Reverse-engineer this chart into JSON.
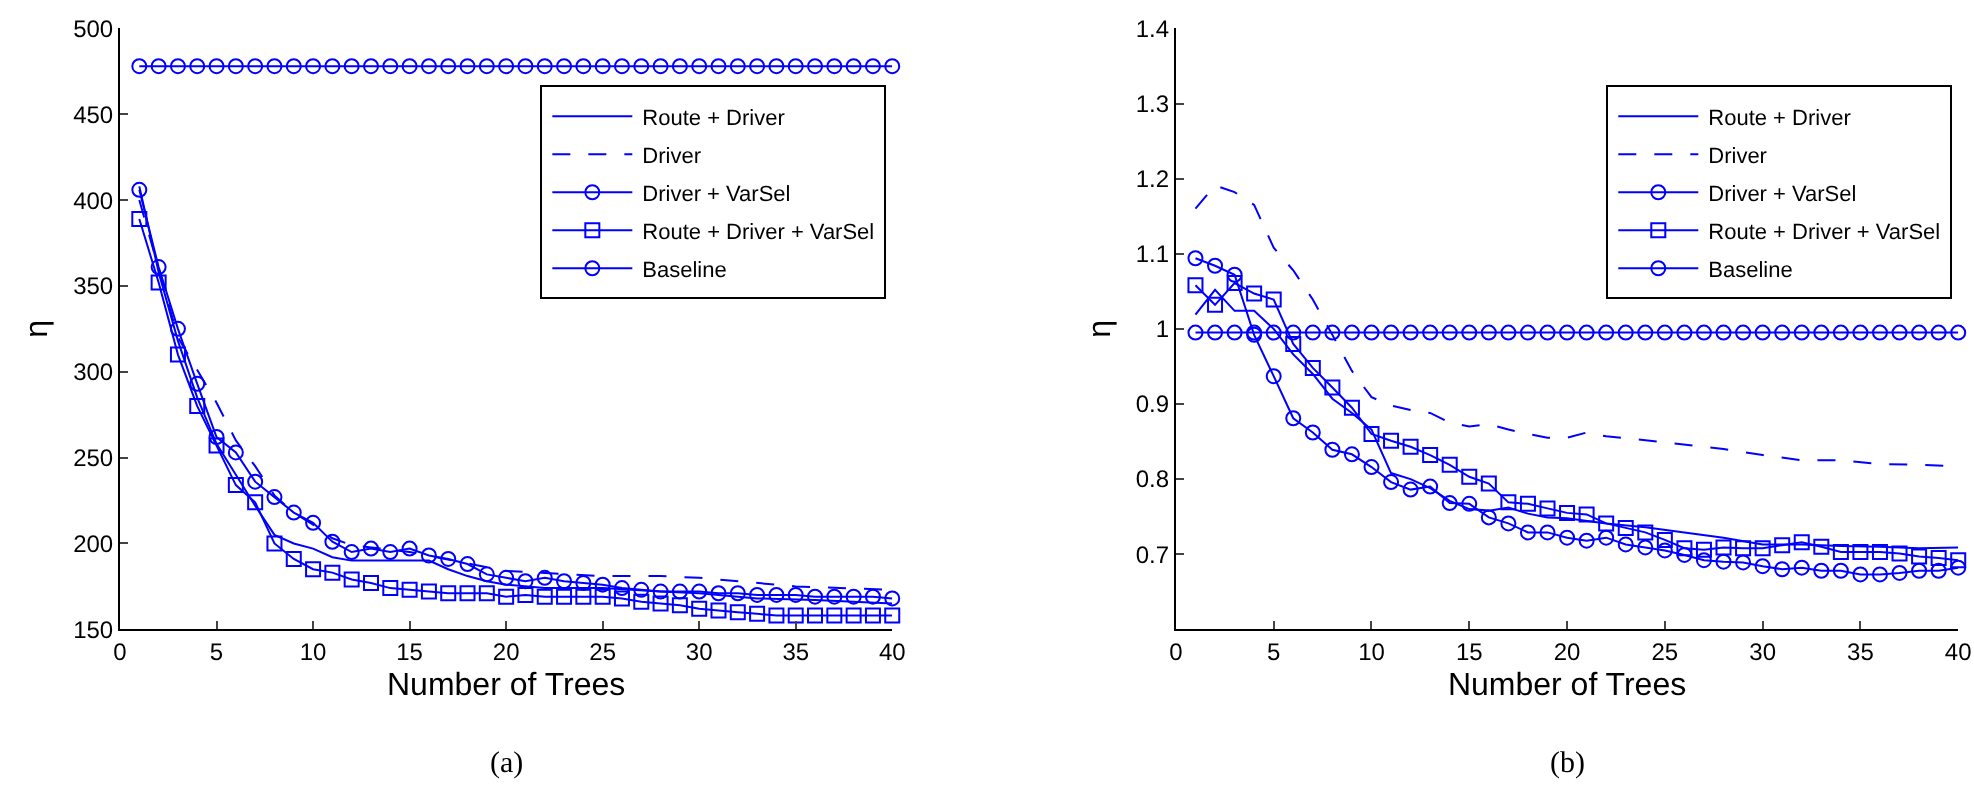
{
  "chart_data": [
    {
      "type": "line",
      "xlabel": "Number of Trees",
      "ylabel": "η",
      "annotations": [
        "(a)"
      ],
      "legend": "top right",
      "grid": false,
      "marker": "none",
      "line_style": "solid",
      "xlim": [
        0,
        40
      ],
      "xticks": [
        0,
        5,
        10,
        15,
        20,
        25,
        30,
        35,
        40
      ],
      "ylim": [
        150,
        500
      ],
      "yticks": [
        150,
        200,
        250,
        300,
        350,
        400,
        450,
        500
      ],
      "x": [
        1,
        2,
        3,
        4,
        5,
        6,
        7,
        8,
        9,
        10,
        11,
        12,
        13,
        14,
        15,
        16,
        17,
        18,
        19,
        20,
        21,
        22,
        23,
        24,
        25,
        26,
        27,
        28,
        29,
        30,
        31,
        32,
        33,
        34,
        35,
        36,
        37,
        38,
        39,
        40
      ],
      "series": [
        {
          "name": "Route + Driver",
          "color": "#0000ff",
          "x": [
            1,
            2,
            3,
            4,
            5,
            6,
            7,
            8,
            9,
            10,
            11,
            12,
            14,
            16,
            17,
            18,
            19,
            20,
            22,
            25,
            28,
            30,
            33,
            36,
            40
          ],
          "values": [
            408,
            358,
            318,
            285,
            258,
            240,
            222,
            205,
            200,
            197,
            192,
            190,
            190,
            190,
            185,
            181,
            178,
            176,
            174,
            174,
            172,
            171,
            168,
            167,
            165
          ]
        },
        {
          "name": "Driver",
          "color": "#0000ff",
          "line_style": "dashed",
          "x": [
            1,
            2,
            3,
            4,
            5,
            6,
            7,
            8,
            9,
            10,
            11,
            12,
            15,
            20,
            25,
            28,
            30,
            35,
            40
          ],
          "values": [
            400,
            360,
            320,
            301,
            282,
            260,
            245,
            228,
            218,
            211,
            203,
            199,
            195,
            184,
            181,
            181,
            180,
            175,
            173
          ]
        },
        {
          "name": "Driver + VarSel",
          "color": "#0000ff",
          "marker": "circle",
          "values": [
            406,
            361,
            325,
            293,
            262,
            253,
            236,
            227,
            218,
            212,
            201,
            195,
            197,
            195,
            197,
            193,
            191,
            188,
            182,
            180,
            178,
            180,
            178,
            177,
            176,
            174,
            173,
            172,
            172,
            172,
            171,
            171,
            170,
            170,
            170,
            169,
            169,
            169,
            169,
            168
          ]
        },
        {
          "name": "Route + Driver + VarSel",
          "color": "#0000ff",
          "marker": "square",
          "values": [
            389,
            352,
            310,
            280,
            257,
            234,
            224,
            200,
            191,
            185,
            183,
            179,
            177,
            174,
            173,
            172,
            171,
            171,
            171,
            169,
            170,
            169,
            169,
            169,
            169,
            168,
            166,
            165,
            164,
            162,
            161,
            160,
            159,
            158,
            158,
            158,
            158,
            158,
            158,
            158
          ]
        },
        {
          "name": "Baseline",
          "color": "#0000ff",
          "marker": "circle",
          "values": [
            478,
            478,
            478,
            478,
            478,
            478,
            478,
            478,
            478,
            478,
            478,
            478,
            478,
            478,
            478,
            478,
            478,
            478,
            478,
            478,
            478,
            478,
            478,
            478,
            478,
            478,
            478,
            478,
            478,
            478,
            478,
            478,
            478,
            478,
            478,
            478,
            478,
            478,
            478,
            478
          ]
        }
      ]
    },
    {
      "type": "line",
      "xlabel": "Number of Trees",
      "ylabel": "η",
      "annotations": [
        "(b)"
      ],
      "legend": "top right",
      "grid": false,
      "marker": "none",
      "line_style": "solid",
      "xlim": [
        0,
        40
      ],
      "xticks": [
        0,
        5,
        10,
        15,
        20,
        25,
        30,
        35,
        40
      ],
      "ylim": [
        0.6,
        1.4
      ],
      "yticks": [
        0.7,
        0.8,
        0.9,
        1,
        1.1,
        1.2,
        1.3,
        1.4
      ],
      "x": [
        1,
        2,
        3,
        4,
        5,
        6,
        7,
        8,
        9,
        10,
        11,
        12,
        13,
        14,
        15,
        16,
        17,
        18,
        19,
        20,
        21,
        22,
        23,
        24,
        25,
        26,
        27,
        28,
        29,
        30,
        31,
        32,
        33,
        34,
        35,
        36,
        37,
        38,
        39,
        40
      ],
      "series": [
        {
          "name": "Route + Driver",
          "color": "#0000ff",
          "x": [
            1,
            2,
            3,
            4,
            5,
            6,
            7,
            8,
            9,
            10,
            11,
            12,
            13,
            14,
            15,
            16,
            17,
            18,
            19,
            20,
            22,
            24,
            26,
            28,
            30,
            32,
            34,
            36,
            38,
            40
          ],
          "values": [
            1.019,
            1.052,
            1.024,
            1.024,
            1.0,
            0.966,
            0.94,
            0.907,
            0.888,
            0.866,
            0.808,
            0.8,
            0.788,
            0.771,
            0.76,
            0.758,
            0.762,
            0.754,
            0.749,
            0.748,
            0.741,
            0.736,
            0.729,
            0.722,
            0.713,
            0.713,
            0.711,
            0.71,
            0.708,
            0.709
          ]
        },
        {
          "name": "Driver",
          "color": "#0000ff",
          "line_style": "dashed",
          "x": [
            1,
            2,
            3,
            4,
            5,
            6,
            7,
            8,
            9,
            10,
            11,
            12,
            13,
            14,
            15,
            16,
            17,
            18,
            19,
            20,
            21,
            22,
            25,
            28,
            30,
            32,
            34,
            36,
            38,
            40
          ],
          "values": [
            1.16,
            1.191,
            1.182,
            1.165,
            1.108,
            1.078,
            1.039,
            0.992,
            0.944,
            0.909,
            0.898,
            0.892,
            0.888,
            0.875,
            0.87,
            0.873,
            0.866,
            0.86,
            0.855,
            0.855,
            0.862,
            0.857,
            0.849,
            0.84,
            0.832,
            0.825,
            0.825,
            0.82,
            0.819,
            0.817
          ]
        },
        {
          "name": "Driver + VarSel",
          "color": "#0000ff",
          "marker": "circle",
          "values": [
            1.094,
            1.084,
            1.072,
            0.992,
            0.937,
            0.881,
            0.862,
            0.839,
            0.833,
            0.816,
            0.796,
            0.786,
            0.79,
            0.768,
            0.767,
            0.749,
            0.741,
            0.729,
            0.729,
            0.722,
            0.718,
            0.722,
            0.713,
            0.709,
            0.705,
            0.699,
            0.692,
            0.69,
            0.689,
            0.684,
            0.68,
            0.682,
            0.678,
            0.678,
            0.673,
            0.673,
            0.675,
            0.678,
            0.678,
            0.682
          ]
        },
        {
          "name": "Route + Driver + VarSel",
          "color": "#0000ff",
          "marker": "square",
          "values": [
            1.058,
            1.032,
            1.061,
            1.047,
            1.039,
            0.98,
            0.948,
            0.922,
            0.895,
            0.86,
            0.851,
            0.843,
            0.832,
            0.819,
            0.803,
            0.794,
            0.769,
            0.767,
            0.761,
            0.755,
            0.753,
            0.741,
            0.735,
            0.729,
            0.719,
            0.708,
            0.706,
            0.709,
            0.708,
            0.708,
            0.712,
            0.716,
            0.71,
            0.703,
            0.703,
            0.703,
            0.701,
            0.697,
            0.695,
            0.692
          ]
        },
        {
          "name": "Baseline",
          "color": "#0000ff",
          "marker": "circle",
          "values": [
            0.995,
            0.995,
            0.995,
            0.995,
            0.995,
            0.995,
            0.995,
            0.995,
            0.995,
            0.995,
            0.995,
            0.995,
            0.995,
            0.995,
            0.995,
            0.995,
            0.995,
            0.995,
            0.995,
            0.995,
            0.995,
            0.995,
            0.995,
            0.995,
            0.995,
            0.995,
            0.995,
            0.995,
            0.995,
            0.995,
            0.995,
            0.995,
            0.995,
            0.995,
            0.995,
            0.995,
            0.995,
            0.995,
            0.995,
            0.995
          ]
        }
      ]
    }
  ]
}
